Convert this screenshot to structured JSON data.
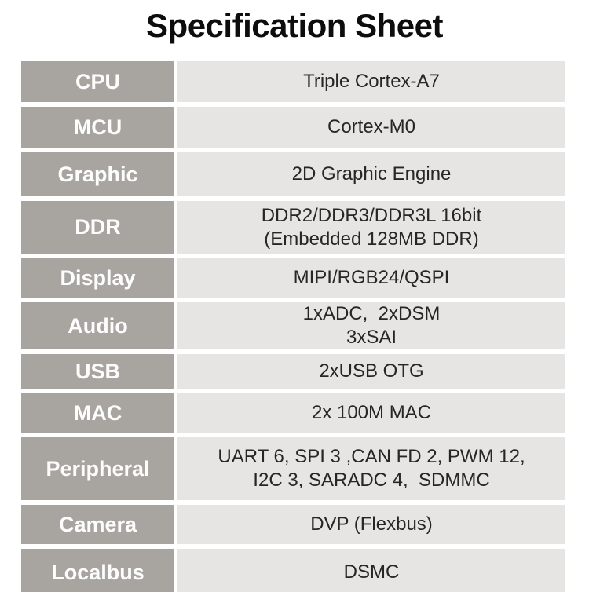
{
  "page": {
    "title": "Specification Sheet"
  },
  "colors": {
    "page_bg": "#ffffff",
    "title_text": "#0d0d0d",
    "label_bg": "#a8a5a1",
    "label_text": "#fdfdfd",
    "value_bg": "#e6e5e3",
    "value_text": "#262626"
  },
  "spec_table": {
    "rows": [
      {
        "label": "CPU",
        "value": [
          "Triple Cortex-A7"
        ]
      },
      {
        "label": "MCU",
        "value": [
          "Cortex-M0"
        ]
      },
      {
        "label": "Graphic",
        "value": [
          "2D Graphic Engine"
        ]
      },
      {
        "label": "DDR",
        "value": [
          "DDR2/DDR3/DDR3L 16bit",
          "(Embedded 128MB DDR)"
        ]
      },
      {
        "label": "Display",
        "value": [
          "MIPI/RGB24/QSPI"
        ]
      },
      {
        "label": "Audio",
        "value": [
          "1xADC,  2xDSM",
          "3xSAI"
        ]
      },
      {
        "label": "USB",
        "value": [
          "2xUSB OTG"
        ]
      },
      {
        "label": "MAC",
        "value": [
          "2x 100M MAC"
        ]
      },
      {
        "label": "Peripheral",
        "value": [
          "UART 6, SPI 3 ,CAN FD 2, PWM 12,",
          "I2C 3, SARADC 4,  SDMMC"
        ]
      },
      {
        "label": "Camera",
        "value": [
          "DVP (Flexbus)"
        ]
      },
      {
        "label": "Localbus",
        "value": [
          "DSMC"
        ]
      }
    ]
  }
}
